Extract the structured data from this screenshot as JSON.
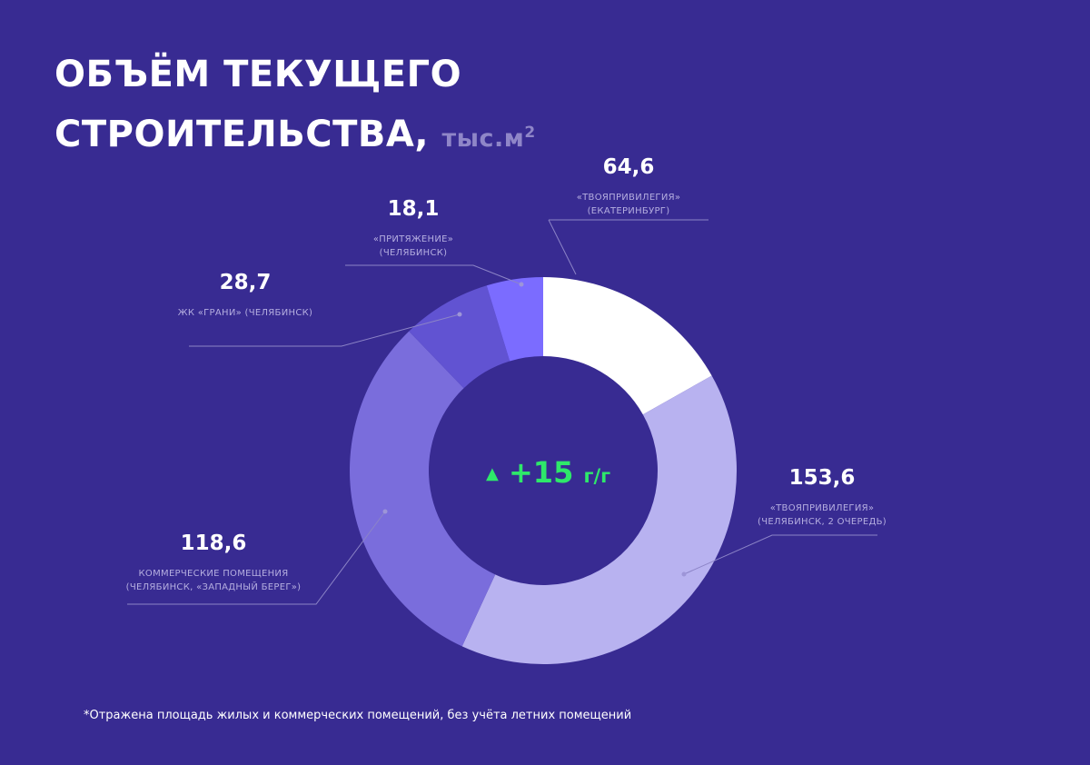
{
  "title": {
    "line1": "ОБЪЁМ ТЕКУЩЕГО",
    "line2": "СТРОИТЕЛЬСТВА,",
    "unit": "тыс.м",
    "unit_sup": "2"
  },
  "center": {
    "triangle": "▲",
    "value": "+15",
    "unit": "г/г"
  },
  "footnote": "*Отражена площадь жилых и коммерческих помещений, без учёта летних помещений",
  "colors": {
    "background": "#382b92",
    "growth": "#2ee86a",
    "leader_line": "#8c84c7"
  },
  "labels": {
    "s64": {
      "value": "64,6",
      "name1": "«ТВОЯПРИВИЛЕГИЯ»",
      "name2": "(ЕКАТЕРИНБУРГ)"
    },
    "s153": {
      "value": "153,6",
      "name1": "«ТВОЯПРИВИЛЕГИЯ»",
      "name2": "(ЧЕЛЯБИНСК, 2 ОЧЕРЕДЬ)"
    },
    "s118": {
      "value": "118,6",
      "name1": "КОММЕРЧЕСКИЕ ПОМЕЩЕНИЯ",
      "name2": "(ЧЕЛЯБИНСК, «ЗАПАДНЫЙ БЕРЕГ»)"
    },
    "s28": {
      "value": "28,7",
      "name1": "ЖК «ГРАНИ» (ЧЕЛЯБИНСК)"
    },
    "s18": {
      "value": "18,1",
      "name1": "«ПРИТЯЖЕНИЕ»",
      "name2": "(ЧЕЛЯБИНСК)"
    }
  },
  "chart_data": {
    "type": "pie",
    "style": "donut",
    "slices": [
      {
        "label": "«ТВОЯПРИВИЛЕГИЯ» (ЕКАТЕРИНБУРГ)",
        "value": 64.6,
        "color": "#ffffff"
      },
      {
        "label": "«ТВОЯПРИВИЛЕГИЯ» (ЧЕЛЯБИНСК, 2 ОЧЕРЕДЬ)",
        "value": 153.6,
        "color": "#b8b2f0"
      },
      {
        "label": "КОММЕРЧЕСКИЕ ПОМЕЩЕНИЯ (ЧЕЛЯБИНСК, «ЗАПАДНЫЙ БЕРЕГ»)",
        "value": 118.6,
        "color": "#7a6ddc"
      },
      {
        "label": "ЖК «ГРАНИ» (ЧЕЛЯБИНСК)",
        "value": 28.7,
        "color": "#6153d2"
      },
      {
        "label": "«ПРИТЯЖЕНИЕ» (ЧЕЛЯБИНСК)",
        "value": 18.1,
        "color": "#7b6cff"
      }
    ]
  }
}
